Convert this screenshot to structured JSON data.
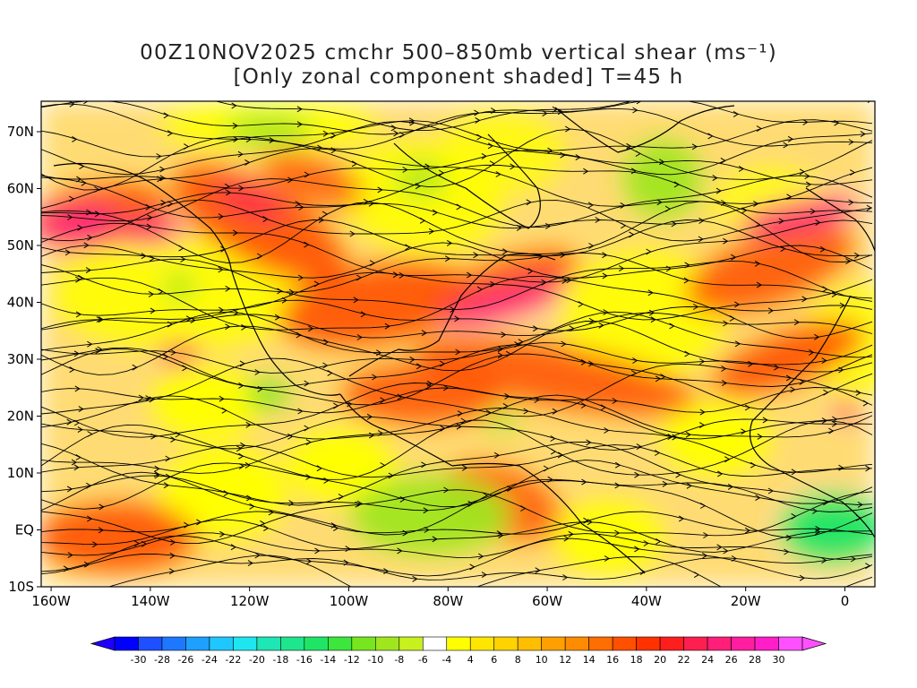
{
  "title_line1": "00Z10NOV2025 cmchr 500–850mb vertical shear (ms⁻¹)",
  "title_line2": "[Only zonal component shaded] T=45 h",
  "lat_labels": [
    "70N",
    "60N",
    "50N",
    "40N",
    "30N",
    "20N",
    "10N",
    "EQ",
    "10S"
  ],
  "lon_labels": [
    "160W",
    "140W",
    "120W",
    "100W",
    "80W",
    "60W",
    "40W",
    "20W",
    "0"
  ],
  "colorbar": {
    "levels": [
      "-30",
      "-28",
      "-26",
      "-24",
      "-22",
      "-20",
      "-18",
      "-16",
      "-14",
      "-12",
      "-10",
      "-8",
      "-6",
      "-4",
      "4",
      "6",
      "8",
      "10",
      "12",
      "14",
      "16",
      "18",
      "20",
      "22",
      "24",
      "26",
      "28",
      "30"
    ],
    "colors": [
      "#1e1eff",
      "#1e50ff",
      "#1e78ff",
      "#1ea0ff",
      "#1ec8ff",
      "#1ee6f0",
      "#1ee6b4",
      "#1ee68c",
      "#1ee664",
      "#3ce63c",
      "#78e61e",
      "#a0e61e",
      "#c8f01e",
      "#ffffff",
      "#ffff00",
      "#ffe600",
      "#ffd200",
      "#ffbe00",
      "#ffa000",
      "#ff8c00",
      "#ff6e00",
      "#ff5000",
      "#ff3200",
      "#ff1e1e",
      "#ff1e50",
      "#ff1e78",
      "#ff1ea0",
      "#ff1ec8",
      "#ff50ff"
    ]
  },
  "field": {
    "variable": "500-850mb vertical shear, zonal component",
    "units": "ms⁻¹",
    "features": [
      {
        "label": "jet",
        "lat": 55,
        "lon": -150,
        "value": 28
      },
      {
        "label": "jet",
        "lat": 50,
        "lon": -115,
        "value": 24
      },
      {
        "label": "jet",
        "lat": 40,
        "lon": -70,
        "value": 26
      },
      {
        "label": "jet",
        "lat": 52,
        "lon": -5,
        "value": 28
      },
      {
        "label": "easterly",
        "lat": 3,
        "lon": -82,
        "value": -10
      },
      {
        "label": "easterly",
        "lat": 3,
        "lon": -5,
        "value": -12
      },
      {
        "label": "easterly",
        "lat": 63,
        "lon": -32,
        "value": -10
      }
    ]
  }
}
